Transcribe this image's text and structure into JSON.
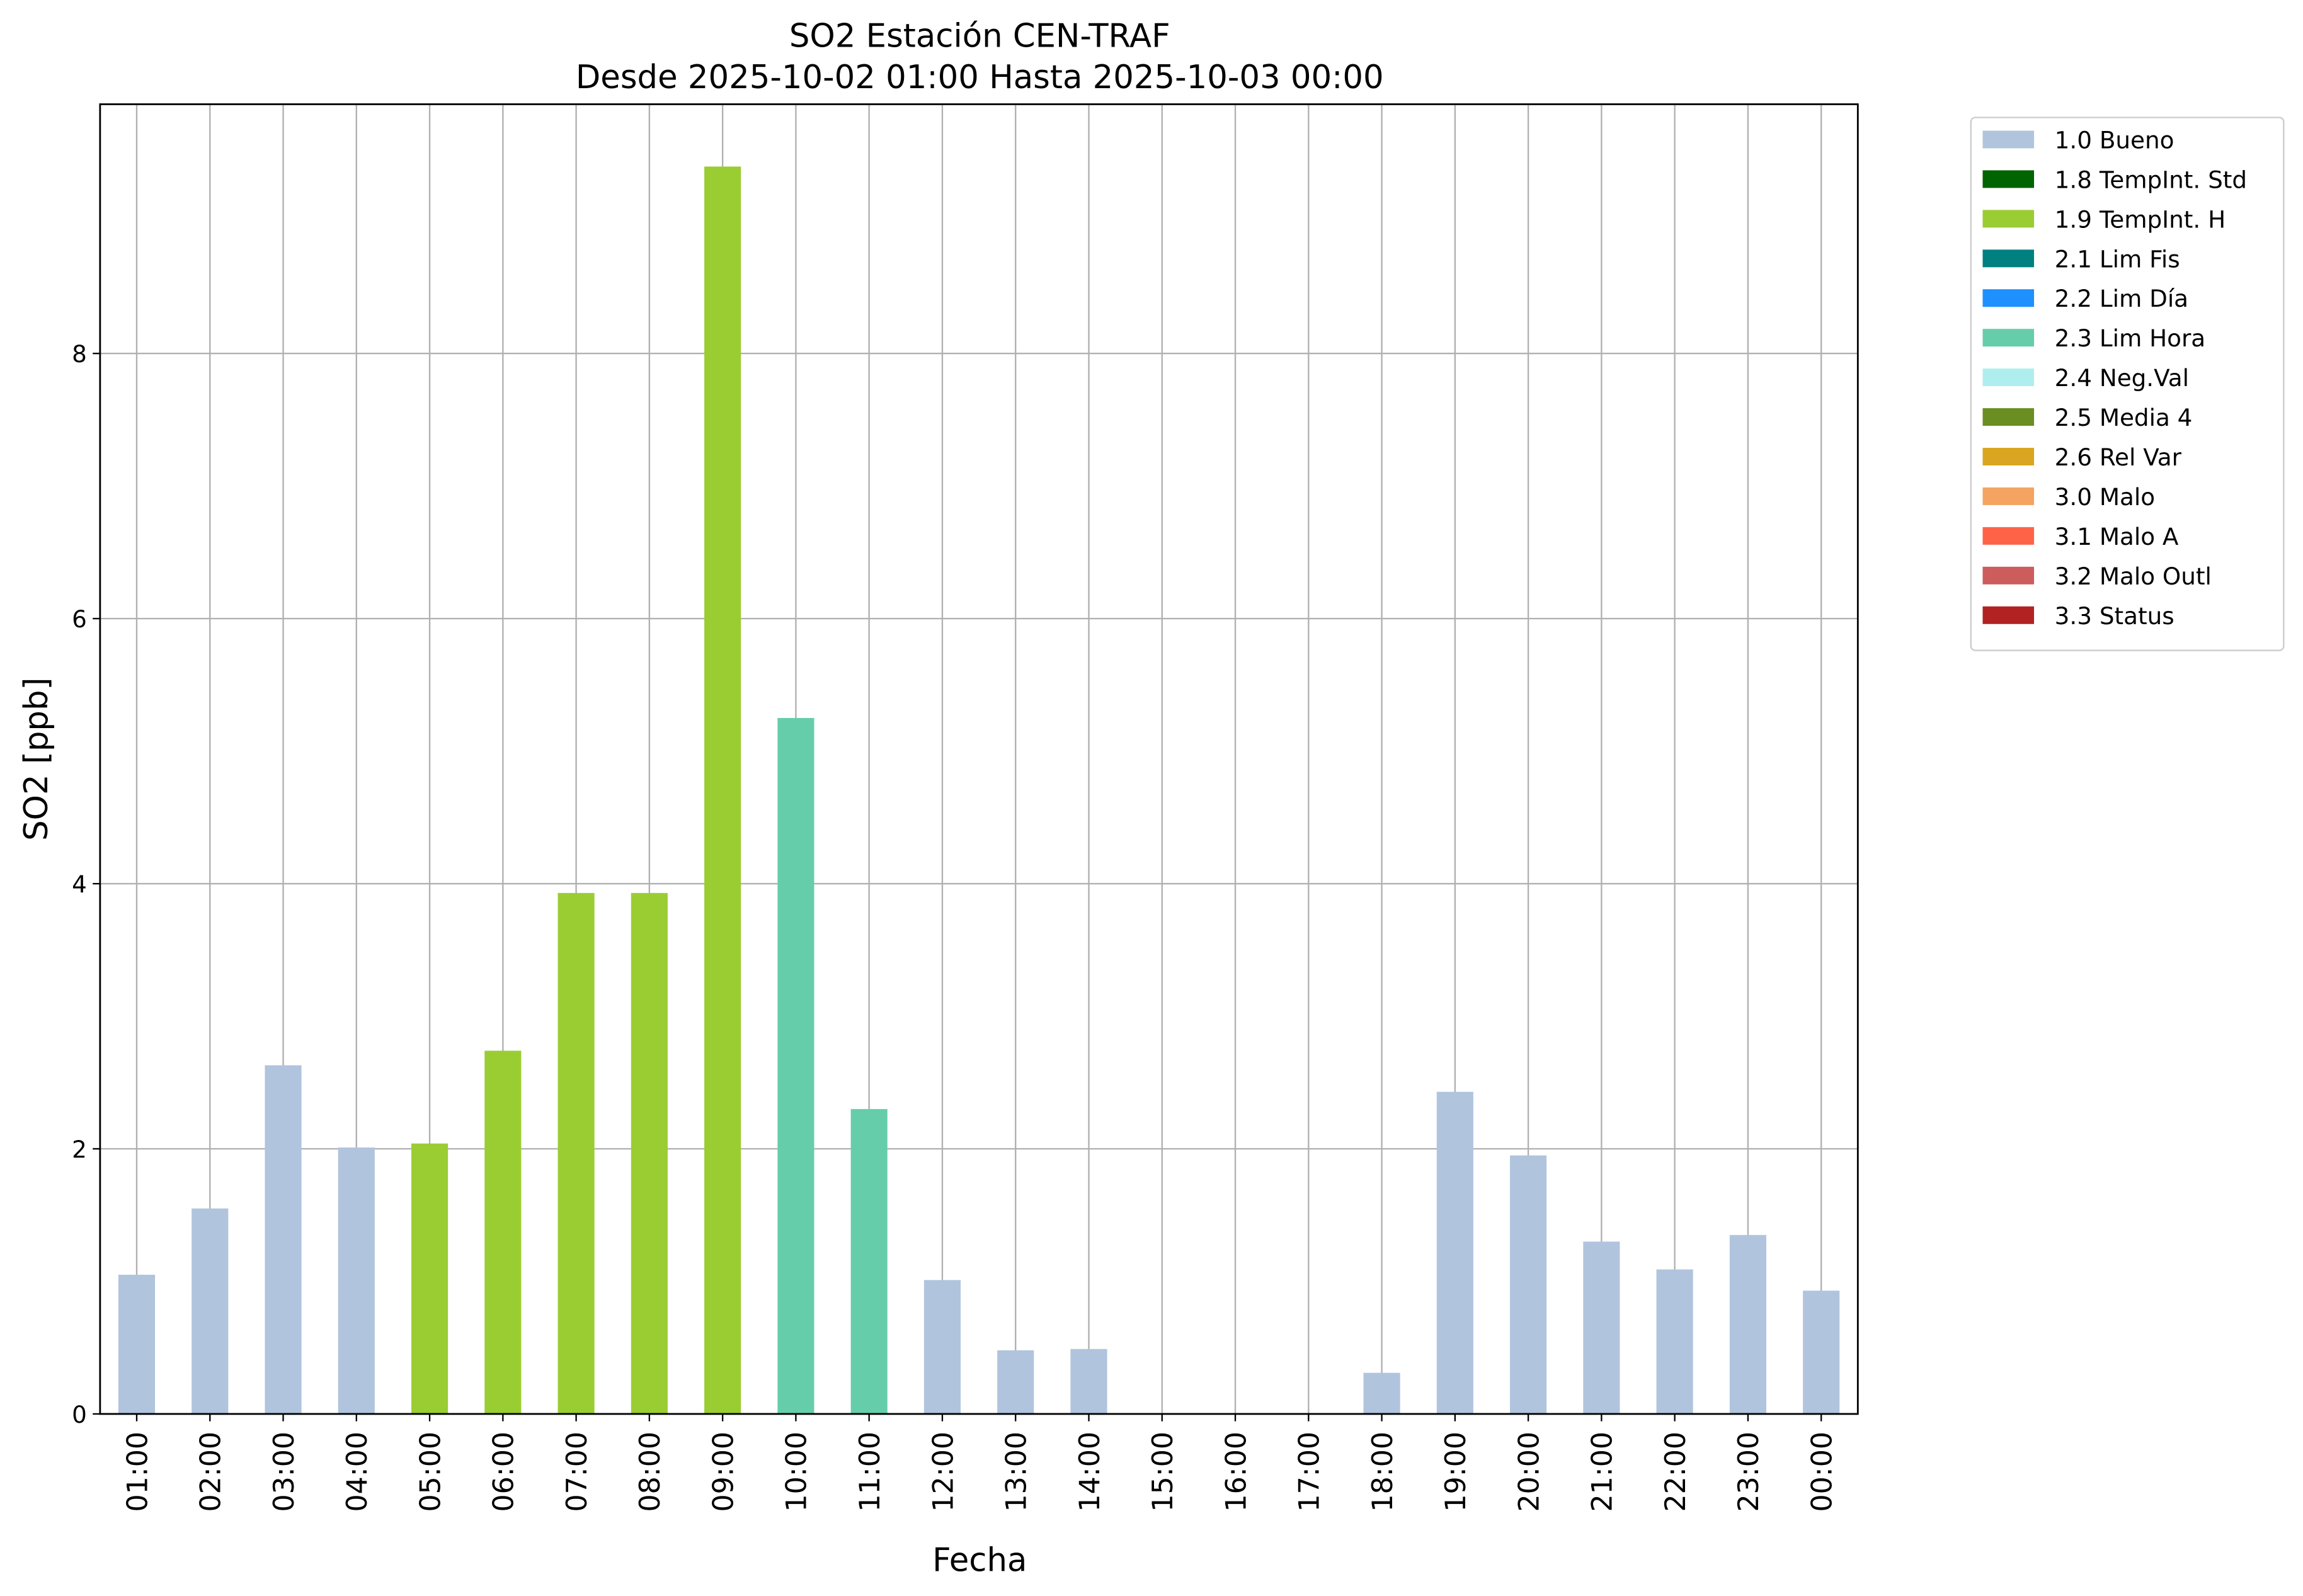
{
  "chart_data": {
    "type": "bar",
    "stacked": true,
    "title": "SO2 Estación CEN-TRAF",
    "subtitle": "Desde 2025-10-02 01:00 Hasta 2025-10-03 00:00",
    "x_label": "Fecha",
    "y_label": "SO2 [ppb]",
    "categories": [
      "01:00",
      "02:00",
      "03:00",
      "04:00",
      "05:00",
      "06:00",
      "07:00",
      "08:00",
      "09:00",
      "10:00",
      "11:00",
      "12:00",
      "13:00",
      "14:00",
      "15:00",
      "16:00",
      "17:00",
      "18:00",
      "19:00",
      "20:00",
      "21:00",
      "22:00",
      "23:00",
      "00:00"
    ],
    "series": [
      {
        "name": "1.0 Bueno",
        "color": "#b0c4de",
        "values": [
          1.05,
          1.55,
          2.63,
          2.01,
          null,
          null,
          null,
          null,
          null,
          null,
          null,
          1.01,
          0.48,
          0.49,
          null,
          null,
          null,
          0.31,
          2.43,
          1.95,
          1.3,
          1.09,
          1.35,
          0.93
        ]
      },
      {
        "name": "1.8 TempInt. Std",
        "color": "#006400",
        "values": [
          null,
          null,
          null,
          null,
          null,
          null,
          null,
          null,
          null,
          null,
          null,
          null,
          null,
          null,
          null,
          null,
          null,
          null,
          null,
          null,
          null,
          null,
          null,
          null
        ]
      },
      {
        "name": "1.9 TempInt. H",
        "color": "#9acd32",
        "values": [
          null,
          null,
          null,
          null,
          2.04,
          2.74,
          3.93,
          3.93,
          9.41,
          null,
          null,
          null,
          null,
          null,
          null,
          null,
          null,
          null,
          null,
          null,
          null,
          null,
          null,
          null
        ]
      },
      {
        "name": "2.1 Lim Fis",
        "color": "#008080",
        "values": [
          null,
          null,
          null,
          null,
          null,
          null,
          null,
          null,
          null,
          null,
          null,
          null,
          null,
          null,
          null,
          null,
          null,
          null,
          null,
          null,
          null,
          null,
          null,
          null
        ]
      },
      {
        "name": "2.2 Lim Día",
        "color": "#1e90ff",
        "values": [
          null,
          null,
          null,
          null,
          null,
          null,
          null,
          null,
          null,
          null,
          null,
          null,
          null,
          null,
          null,
          null,
          null,
          null,
          null,
          null,
          null,
          null,
          null,
          null
        ]
      },
      {
        "name": "2.3 Lim Hora",
        "color": "#66cdaa",
        "values": [
          null,
          null,
          null,
          null,
          null,
          null,
          null,
          null,
          null,
          5.25,
          2.3,
          null,
          null,
          null,
          null,
          null,
          null,
          null,
          null,
          null,
          null,
          null,
          null,
          null
        ]
      },
      {
        "name": "2.4 Neg.Val",
        "color": "#afeeee",
        "values": [
          null,
          null,
          null,
          null,
          null,
          null,
          null,
          null,
          null,
          null,
          null,
          null,
          null,
          null,
          null,
          null,
          null,
          null,
          null,
          null,
          null,
          null,
          null,
          null
        ]
      },
      {
        "name": "2.5 Media 4",
        "color": "#6b8e23",
        "values": [
          null,
          null,
          null,
          null,
          null,
          null,
          null,
          null,
          null,
          null,
          null,
          null,
          null,
          null,
          null,
          null,
          null,
          null,
          null,
          null,
          null,
          null,
          null,
          null
        ]
      },
      {
        "name": "2.6 Rel Var",
        "color": "#daa520",
        "values": [
          null,
          null,
          null,
          null,
          null,
          null,
          null,
          null,
          null,
          null,
          null,
          null,
          null,
          null,
          null,
          null,
          null,
          null,
          null,
          null,
          null,
          null,
          null,
          null
        ]
      },
      {
        "name": "3.0 Malo",
        "color": "#f4a460",
        "values": [
          null,
          null,
          null,
          null,
          null,
          null,
          null,
          null,
          null,
          null,
          null,
          null,
          null,
          null,
          null,
          null,
          null,
          null,
          null,
          null,
          null,
          null,
          null,
          null
        ]
      },
      {
        "name": "3.1 Malo A",
        "color": "#ff6347",
        "values": [
          null,
          null,
          null,
          null,
          null,
          null,
          null,
          null,
          null,
          null,
          null,
          null,
          null,
          null,
          null,
          null,
          null,
          null,
          null,
          null,
          null,
          null,
          null,
          null
        ]
      },
      {
        "name": "3.2 Malo Outl",
        "color": "#cd5c5c",
        "values": [
          null,
          null,
          null,
          null,
          null,
          null,
          null,
          null,
          null,
          null,
          null,
          null,
          null,
          null,
          null,
          null,
          null,
          null,
          null,
          null,
          null,
          null,
          null,
          null
        ]
      },
      {
        "name": "3.3 Status",
        "color": "#b22222",
        "values": [
          null,
          null,
          null,
          null,
          null,
          null,
          null,
          null,
          null,
          null,
          null,
          null,
          null,
          null,
          null,
          null,
          null,
          null,
          null,
          null,
          null,
          null,
          null,
          null
        ]
      }
    ],
    "ylim": [
      0,
      9.88
    ],
    "yticks": [
      0,
      2,
      4,
      6,
      8
    ],
    "grid": true,
    "legend": "outside-right"
  }
}
